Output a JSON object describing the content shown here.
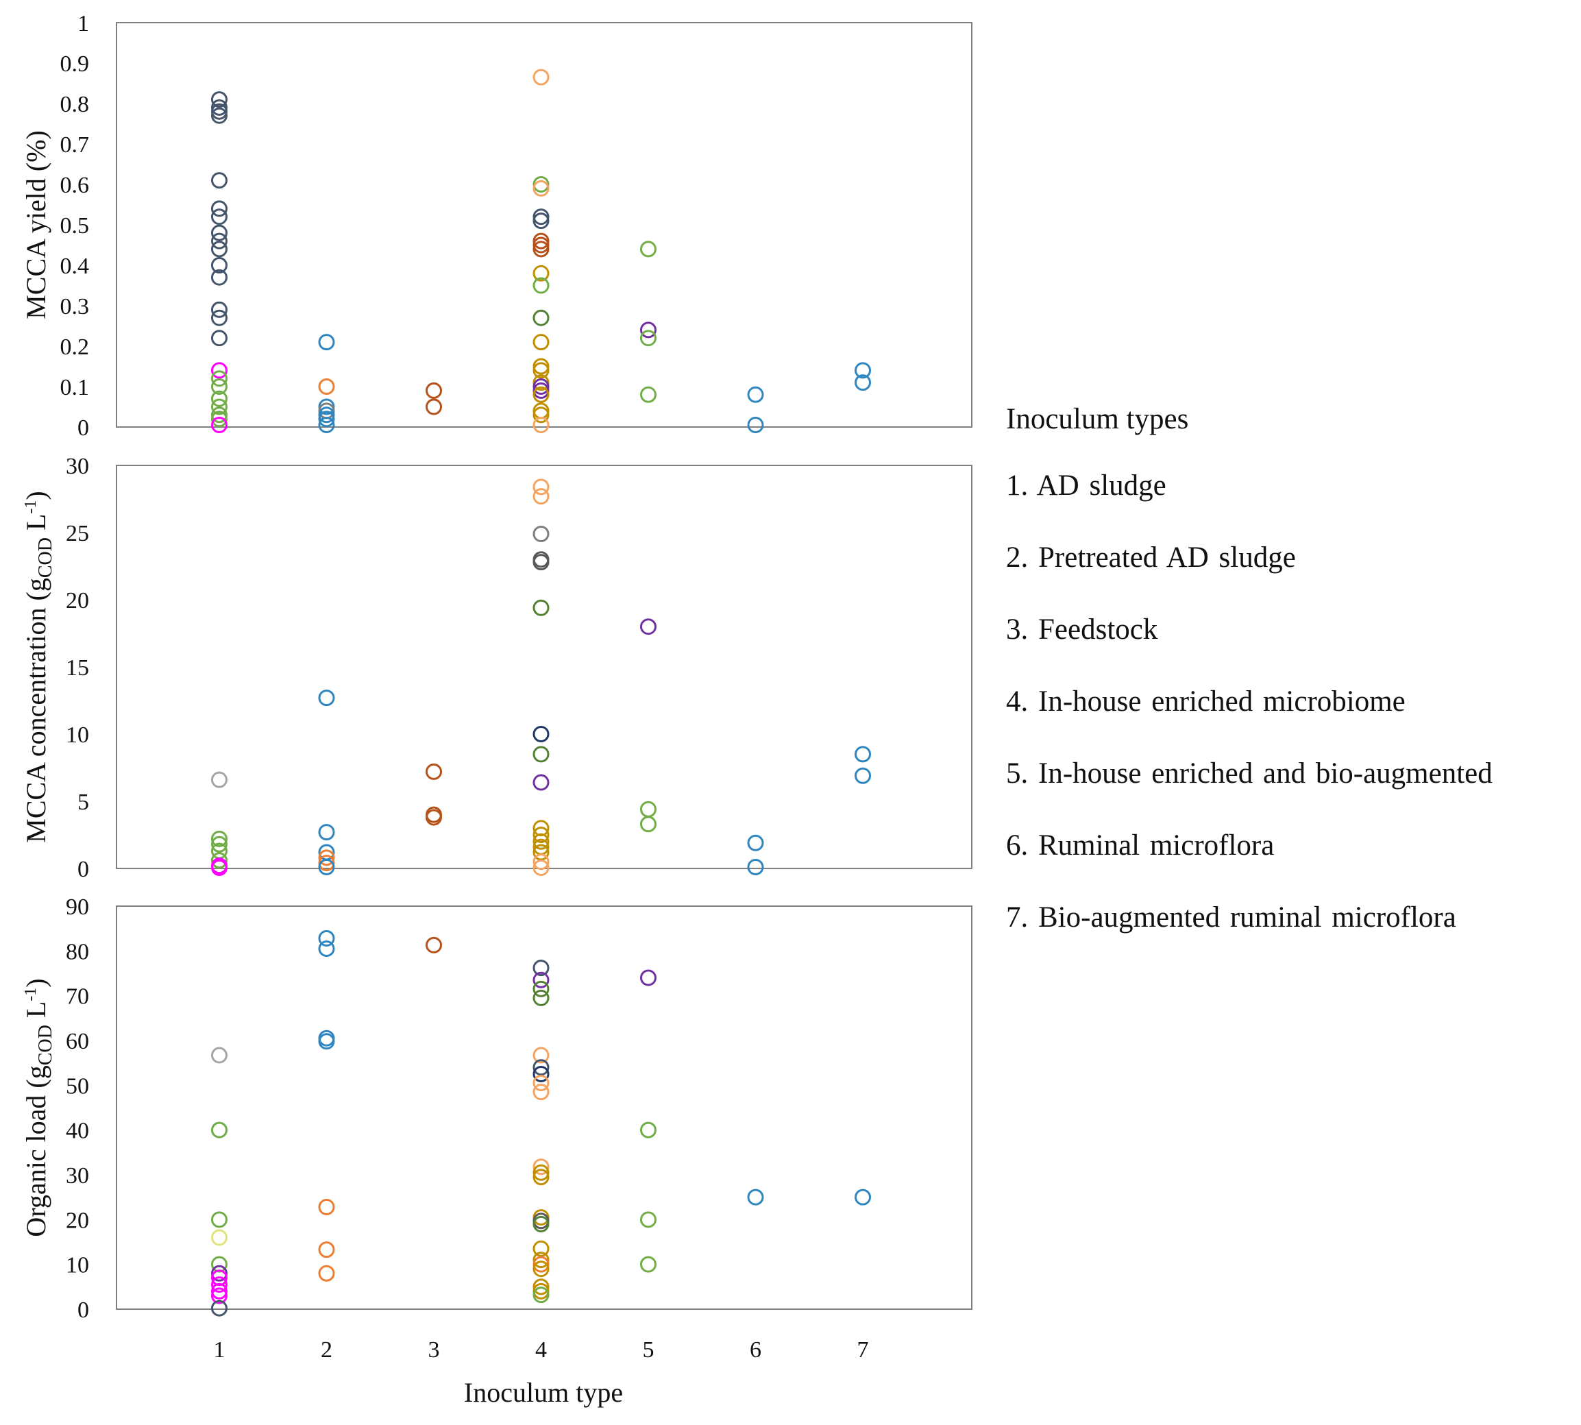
{
  "chart_data": {
    "type": "scatter",
    "xlabel": "Inoculum type",
    "x_ticks": [
      "1",
      "2",
      "3",
      "4",
      "5",
      "6",
      "7"
    ],
    "panels": [
      {
        "ylabel": "MCCA yield (%)",
        "ylim": [
          0,
          1
        ],
        "y_ticks": [
          "0",
          "0.1",
          "0.2",
          "0.3",
          "0.4",
          "0.5",
          "0.6",
          "0.7",
          "0.8",
          "0.9",
          "1"
        ],
        "points": [
          {
            "x": 1,
            "y": 0.81,
            "color": "#44546a"
          },
          {
            "x": 1,
            "y": 0.79,
            "color": "#44546a"
          },
          {
            "x": 1,
            "y": 0.78,
            "color": "#44546a"
          },
          {
            "x": 1,
            "y": 0.77,
            "color": "#44546a"
          },
          {
            "x": 1,
            "y": 0.61,
            "color": "#44546a"
          },
          {
            "x": 1,
            "y": 0.54,
            "color": "#44546a"
          },
          {
            "x": 1,
            "y": 0.52,
            "color": "#44546a"
          },
          {
            "x": 1,
            "y": 0.48,
            "color": "#44546a"
          },
          {
            "x": 1,
            "y": 0.46,
            "color": "#44546a"
          },
          {
            "x": 1,
            "y": 0.44,
            "color": "#44546a"
          },
          {
            "x": 1,
            "y": 0.4,
            "color": "#44546a"
          },
          {
            "x": 1,
            "y": 0.37,
            "color": "#44546a"
          },
          {
            "x": 1,
            "y": 0.29,
            "color": "#44546a"
          },
          {
            "x": 1,
            "y": 0.27,
            "color": "#44546a"
          },
          {
            "x": 1,
            "y": 0.22,
            "color": "#44546a"
          },
          {
            "x": 1,
            "y": 0.14,
            "color": "#ff00ff"
          },
          {
            "x": 1,
            "y": 0.12,
            "color": "#70ad47"
          },
          {
            "x": 1,
            "y": 0.1,
            "color": "#70ad47"
          },
          {
            "x": 1,
            "y": 0.07,
            "color": "#70ad47"
          },
          {
            "x": 1,
            "y": 0.05,
            "color": "#70ad47"
          },
          {
            "x": 1,
            "y": 0.03,
            "color": "#70ad47"
          },
          {
            "x": 1,
            "y": 0.02,
            "color": "#70ad47"
          },
          {
            "x": 1,
            "y": 0.005,
            "color": "#ff00ff"
          },
          {
            "x": 2,
            "y": 0.21,
            "color": "#2e86c1"
          },
          {
            "x": 2,
            "y": 0.1,
            "color": "#ed7d31"
          },
          {
            "x": 2,
            "y": 0.05,
            "color": "#2e86c1"
          },
          {
            "x": 2,
            "y": 0.04,
            "color": "#7f7f7f"
          },
          {
            "x": 2,
            "y": 0.03,
            "color": "#2e86c1"
          },
          {
            "x": 2,
            "y": 0.02,
            "color": "#2e86c1"
          },
          {
            "x": 2,
            "y": 0.005,
            "color": "#2e86c1"
          },
          {
            "x": 3,
            "y": 0.09,
            "color": "#b5521b"
          },
          {
            "x": 3,
            "y": 0.05,
            "color": "#b5521b"
          },
          {
            "x": 4,
            "y": 0.865,
            "color": "#f4a460"
          },
          {
            "x": 4,
            "y": 0.6,
            "color": "#70ad47"
          },
          {
            "x": 4,
            "y": 0.59,
            "color": "#f4a460"
          },
          {
            "x": 4,
            "y": 0.52,
            "color": "#44546a"
          },
          {
            "x": 4,
            "y": 0.51,
            "color": "#44546a"
          },
          {
            "x": 4,
            "y": 0.46,
            "color": "#b5521b"
          },
          {
            "x": 4,
            "y": 0.45,
            "color": "#b5521b"
          },
          {
            "x": 4,
            "y": 0.44,
            "color": "#b5521b"
          },
          {
            "x": 4,
            "y": 0.38,
            "color": "#bf8f00"
          },
          {
            "x": 4,
            "y": 0.35,
            "color": "#70ad47"
          },
          {
            "x": 4,
            "y": 0.27,
            "color": "#548235"
          },
          {
            "x": 4,
            "y": 0.21,
            "color": "#bf8f00"
          },
          {
            "x": 4,
            "y": 0.15,
            "color": "#bf8f00"
          },
          {
            "x": 4,
            "y": 0.14,
            "color": "#bf8f00"
          },
          {
            "x": 4,
            "y": 0.11,
            "color": "#bf8f00"
          },
          {
            "x": 4,
            "y": 0.1,
            "color": "#7030a0"
          },
          {
            "x": 4,
            "y": 0.09,
            "color": "#7030a0"
          },
          {
            "x": 4,
            "y": 0.08,
            "color": "#bf8f00"
          },
          {
            "x": 4,
            "y": 0.04,
            "color": "#bf8f00"
          },
          {
            "x": 4,
            "y": 0.03,
            "color": "#bf8f00"
          },
          {
            "x": 4,
            "y": 0.005,
            "color": "#f4a460"
          },
          {
            "x": 5,
            "y": 0.44,
            "color": "#70ad47"
          },
          {
            "x": 5,
            "y": 0.24,
            "color": "#7030a0"
          },
          {
            "x": 5,
            "y": 0.22,
            "color": "#70ad47"
          },
          {
            "x": 5,
            "y": 0.08,
            "color": "#70ad47"
          },
          {
            "x": 6,
            "y": 0.08,
            "color": "#2e86c1"
          },
          {
            "x": 6,
            "y": 0.005,
            "color": "#2e86c1"
          },
          {
            "x": 7,
            "y": 0.14,
            "color": "#2e86c1"
          },
          {
            "x": 7,
            "y": 0.11,
            "color": "#2e86c1"
          }
        ]
      },
      {
        "ylabel_main": "MCCA concentration (g",
        "ylabel_sub": "COD",
        "ylabel_unit": " L",
        "ylabel_sup": "-1",
        "ylabel_close": ")",
        "ylim": [
          0,
          30
        ],
        "y_ticks": [
          "0",
          "5",
          "10",
          "15",
          "20",
          "25",
          "30"
        ],
        "points": [
          {
            "x": 1,
            "y": 6.6,
            "color": "#a5a5a5"
          },
          {
            "x": 1,
            "y": 2.2,
            "color": "#70ad47"
          },
          {
            "x": 1,
            "y": 1.8,
            "color": "#70ad47"
          },
          {
            "x": 1,
            "y": 1.3,
            "color": "#70ad47"
          },
          {
            "x": 1,
            "y": 0.6,
            "color": "#70ad47"
          },
          {
            "x": 1,
            "y": 0.2,
            "color": "#ff00ff"
          },
          {
            "x": 1,
            "y": 0.05,
            "color": "#ff00ff"
          },
          {
            "x": 2,
            "y": 12.7,
            "color": "#2e86c1"
          },
          {
            "x": 2,
            "y": 2.7,
            "color": "#2e86c1"
          },
          {
            "x": 2,
            "y": 1.2,
            "color": "#2e86c1"
          },
          {
            "x": 2,
            "y": 0.8,
            "color": "#ed7d31"
          },
          {
            "x": 2,
            "y": 0.4,
            "color": "#ed7d31"
          },
          {
            "x": 2,
            "y": 0.1,
            "color": "#2e86c1"
          },
          {
            "x": 3,
            "y": 7.2,
            "color": "#b5521b"
          },
          {
            "x": 3,
            "y": 4.0,
            "color": "#b5521b"
          },
          {
            "x": 3,
            "y": 3.8,
            "color": "#b5521b"
          },
          {
            "x": 4,
            "y": 28.4,
            "color": "#f4a460"
          },
          {
            "x": 4,
            "y": 27.7,
            "color": "#f4a460"
          },
          {
            "x": 4,
            "y": 24.9,
            "color": "#7f7f7f"
          },
          {
            "x": 4,
            "y": 23.0,
            "color": "#595959"
          },
          {
            "x": 4,
            "y": 22.8,
            "color": "#595959"
          },
          {
            "x": 4,
            "y": 19.4,
            "color": "#548235"
          },
          {
            "x": 4,
            "y": 10.0,
            "color": "#1f3864"
          },
          {
            "x": 4,
            "y": 8.5,
            "color": "#548235"
          },
          {
            "x": 4,
            "y": 6.4,
            "color": "#7030a0"
          },
          {
            "x": 4,
            "y": 3.0,
            "color": "#bf8f00"
          },
          {
            "x": 4,
            "y": 2.5,
            "color": "#bf8f00"
          },
          {
            "x": 4,
            "y": 2.0,
            "color": "#bf8f00"
          },
          {
            "x": 4,
            "y": 1.6,
            "color": "#bf8f00"
          },
          {
            "x": 4,
            "y": 1.2,
            "color": "#bf8f00"
          },
          {
            "x": 4,
            "y": 0.5,
            "color": "#f4a460"
          },
          {
            "x": 4,
            "y": 0.05,
            "color": "#f4a460"
          },
          {
            "x": 5,
            "y": 18.0,
            "color": "#7030a0"
          },
          {
            "x": 5,
            "y": 4.4,
            "color": "#70ad47"
          },
          {
            "x": 5,
            "y": 3.3,
            "color": "#70ad47"
          },
          {
            "x": 6,
            "y": 1.9,
            "color": "#2e86c1"
          },
          {
            "x": 6,
            "y": 0.1,
            "color": "#2e86c1"
          },
          {
            "x": 7,
            "y": 8.5,
            "color": "#2e86c1"
          },
          {
            "x": 7,
            "y": 6.9,
            "color": "#2e86c1"
          }
        ]
      },
      {
        "ylabel_main": "Organic load (g",
        "ylabel_sub": "COD",
        "ylabel_unit": " L",
        "ylabel_sup": "-1",
        "ylabel_close": ")",
        "ylim": [
          0,
          90
        ],
        "y_ticks": [
          "0",
          "10",
          "20",
          "30",
          "40",
          "50",
          "60",
          "70",
          "80",
          "90"
        ],
        "points": [
          {
            "x": 1,
            "y": 56.7,
            "color": "#a5a5a5"
          },
          {
            "x": 1,
            "y": 40.0,
            "color": "#70ad47"
          },
          {
            "x": 1,
            "y": 20.0,
            "color": "#70ad47"
          },
          {
            "x": 1,
            "y": 16.0,
            "color": "#e2e27a"
          },
          {
            "x": 1,
            "y": 10.0,
            "color": "#70ad47"
          },
          {
            "x": 1,
            "y": 8.0,
            "color": "#7030a0"
          },
          {
            "x": 1,
            "y": 7.0,
            "color": "#ff00ff"
          },
          {
            "x": 1,
            "y": 5.5,
            "color": "#ff00ff"
          },
          {
            "x": 1,
            "y": 4.0,
            "color": "#ff00ff"
          },
          {
            "x": 1,
            "y": 3.0,
            "color": "#ff00ff"
          },
          {
            "x": 1,
            "y": 0.2,
            "color": "#44546a"
          },
          {
            "x": 2,
            "y": 82.8,
            "color": "#2e86c1"
          },
          {
            "x": 2,
            "y": 80.5,
            "color": "#2e86c1"
          },
          {
            "x": 2,
            "y": 60.5,
            "color": "#2e86c1"
          },
          {
            "x": 2,
            "y": 59.8,
            "color": "#2e86c1"
          },
          {
            "x": 2,
            "y": 22.8,
            "color": "#ed7d31"
          },
          {
            "x": 2,
            "y": 13.3,
            "color": "#ed7d31"
          },
          {
            "x": 2,
            "y": 8.0,
            "color": "#ed7d31"
          },
          {
            "x": 3,
            "y": 81.3,
            "color": "#b5521b"
          },
          {
            "x": 4,
            "y": 76.2,
            "color": "#44546a"
          },
          {
            "x": 4,
            "y": 73.5,
            "color": "#7030a0"
          },
          {
            "x": 4,
            "y": 71.5,
            "color": "#548235"
          },
          {
            "x": 4,
            "y": 69.5,
            "color": "#548235"
          },
          {
            "x": 4,
            "y": 56.7,
            "color": "#f4a460"
          },
          {
            "x": 4,
            "y": 54.0,
            "color": "#44546a"
          },
          {
            "x": 4,
            "y": 52.5,
            "color": "#1f3864"
          },
          {
            "x": 4,
            "y": 50.5,
            "color": "#f4a460"
          },
          {
            "x": 4,
            "y": 48.5,
            "color": "#f4a460"
          },
          {
            "x": 4,
            "y": 31.8,
            "color": "#f4a460"
          },
          {
            "x": 4,
            "y": 30.5,
            "color": "#bf8f00"
          },
          {
            "x": 4,
            "y": 29.5,
            "color": "#bf8f00"
          },
          {
            "x": 4,
            "y": 20.5,
            "color": "#bf8f00"
          },
          {
            "x": 4,
            "y": 19.7,
            "color": "#595959"
          },
          {
            "x": 4,
            "y": 19.0,
            "color": "#548235"
          },
          {
            "x": 4,
            "y": 13.5,
            "color": "#bf8f00"
          },
          {
            "x": 4,
            "y": 11.0,
            "color": "#bf8f00"
          },
          {
            "x": 4,
            "y": 10.0,
            "color": "#ed7d31"
          },
          {
            "x": 4,
            "y": 9.0,
            "color": "#bf8f00"
          },
          {
            "x": 4,
            "y": 5.0,
            "color": "#bf8f00"
          },
          {
            "x": 4,
            "y": 4.0,
            "color": "#bf8f00"
          },
          {
            "x": 4,
            "y": 3.2,
            "color": "#70ad47"
          },
          {
            "x": 5,
            "y": 74.0,
            "color": "#7030a0"
          },
          {
            "x": 5,
            "y": 40.0,
            "color": "#70ad47"
          },
          {
            "x": 5,
            "y": 20.0,
            "color": "#70ad47"
          },
          {
            "x": 5,
            "y": 10.0,
            "color": "#70ad47"
          },
          {
            "x": 6,
            "y": 25.0,
            "color": "#2e86c1"
          },
          {
            "x": 7,
            "y": 25.0,
            "color": "#2e86c1"
          }
        ]
      }
    ],
    "legend": {
      "title": "Inoculum types",
      "placement": "right",
      "items": [
        "1. AD sludge",
        "2. Pretreated AD sludge",
        "3. Feedstock",
        "4. In-house enriched microbiome",
        "5. In-house enriched and bio-augmented",
        "6. Ruminal microflora",
        "7. Bio-augmented ruminal microflora"
      ]
    }
  }
}
